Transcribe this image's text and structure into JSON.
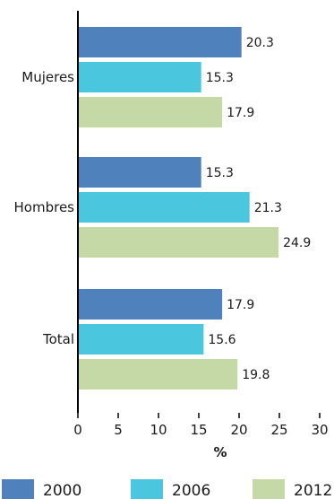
{
  "chart_data": {
    "type": "bar",
    "orientation": "horizontal",
    "categories": [
      "Mujeres",
      "Hombres",
      "Total"
    ],
    "series": [
      {
        "name": "2000",
        "values": [
          20.3,
          15.3,
          17.9
        ],
        "color": "#4f81bd"
      },
      {
        "name": "2006",
        "values": [
          15.3,
          21.3,
          15.6
        ],
        "color": "#4bc6df"
      },
      {
        "name": "2012",
        "values": [
          17.9,
          24.9,
          19.8
        ],
        "color": "#c4d9a6"
      }
    ],
    "xlabel": "%",
    "xlim": [
      0,
      30
    ],
    "xticks": [
      "0",
      "5",
      "10",
      "15",
      "20",
      "25",
      "30"
    ],
    "grid": false,
    "legend_position": "bottom"
  }
}
